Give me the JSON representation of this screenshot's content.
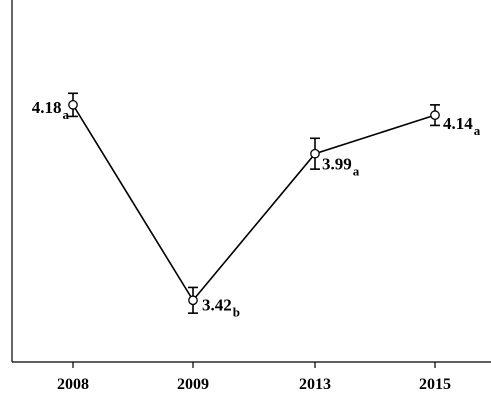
{
  "chart_data": {
    "type": "line",
    "title": "",
    "xlabel": "",
    "ylabel": "",
    "categories": [
      "2008",
      "2009",
      "2013",
      "2015"
    ],
    "ylim": [
      3.25,
      4.3
    ],
    "grid": false,
    "series": [
      {
        "values": [
          4.18,
          3.42,
          3.99,
          4.14
        ],
        "error": [
          0.045,
          0.05,
          0.06,
          0.04
        ],
        "value_labels": [
          "4.18",
          "3.42",
          "3.99",
          "4.14"
        ],
        "group_letters": [
          "a",
          "b",
          "a",
          "a"
        ],
        "color": "#000000",
        "marker": "open-circle"
      }
    ]
  }
}
